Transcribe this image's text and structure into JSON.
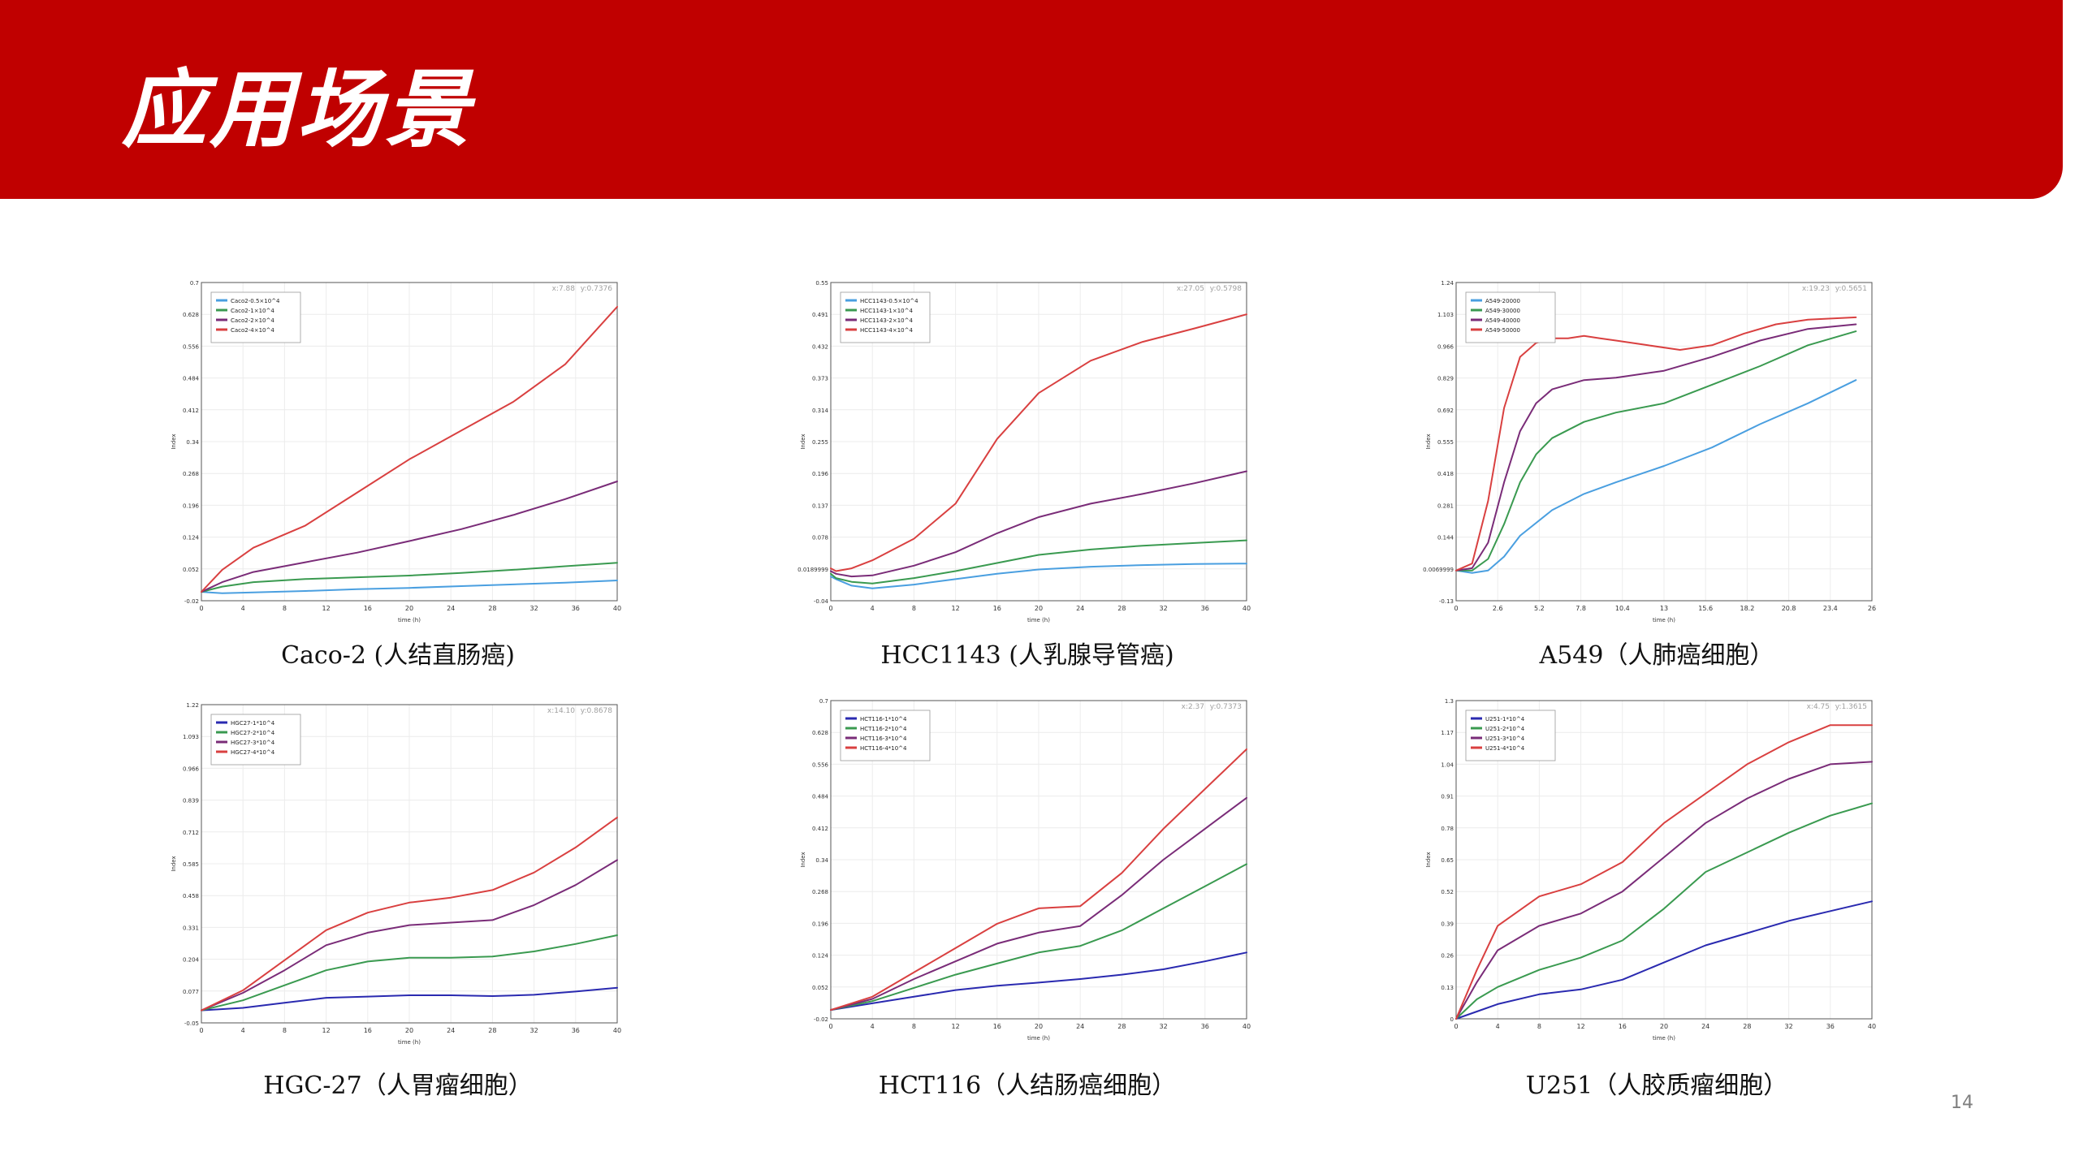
{
  "header": {
    "title": "应用场景"
  },
  "page_number": "14",
  "colors": {
    "banner": "#c00000",
    "blue": "#4a9fe0",
    "green": "#3a9a50",
    "purple": "#7a2c78",
    "red": "#d94040",
    "navy": "#2a2ab0"
  },
  "chart_data": [
    {
      "type": "line",
      "caption": "Caco-2 (人结直肠癌)",
      "xlabel": "time (h)",
      "ylabel": "Index",
      "readout_x": "x:7.88",
      "readout_y": "y:0.7376",
      "xlim": [
        0,
        40
      ],
      "ylim": [
        -0.02,
        0.7
      ],
      "xticks": [
        "0",
        "4",
        "8",
        "12",
        "16",
        "20",
        "24",
        "28",
        "32",
        "36",
        "40"
      ],
      "yticks": [
        "-0.02",
        "0.052",
        "0.124",
        "0.196",
        "0.268",
        "0.34",
        "0.412",
        "0.484",
        "0.556",
        "0.628",
        "0.7"
      ],
      "ytick_values": [
        -0.02,
        0.052,
        0.124,
        0.196,
        0.268,
        0.34,
        0.412,
        0.484,
        0.556,
        0.628,
        0.7
      ],
      "legend_position": "top-left",
      "grid": true,
      "series": [
        {
          "name": "Caco2-0.5×10^4",
          "color": "#4a9fe0",
          "x": [
            0,
            2,
            5,
            10,
            15,
            20,
            25,
            30,
            35,
            40
          ],
          "y": [
            0.0,
            -0.003,
            -0.001,
            0.002,
            0.006,
            0.009,
            0.013,
            0.017,
            0.021,
            0.026
          ]
        },
        {
          "name": "Caco2-1×10^4",
          "color": "#3a9a50",
          "x": [
            0,
            2,
            5,
            10,
            15,
            20,
            25,
            30,
            35,
            40
          ],
          "y": [
            0.0,
            0.012,
            0.022,
            0.029,
            0.033,
            0.037,
            0.043,
            0.05,
            0.058,
            0.066
          ]
        },
        {
          "name": "Caco2-2×10^4",
          "color": "#7a2c78",
          "x": [
            0,
            2,
            5,
            10,
            15,
            20,
            25,
            30,
            35,
            40
          ],
          "y": [
            0.0,
            0.022,
            0.045,
            0.067,
            0.089,
            0.115,
            0.142,
            0.174,
            0.21,
            0.25
          ]
        },
        {
          "name": "Caco2-4×10^4",
          "color": "#d94040",
          "x": [
            0,
            2,
            5,
            10,
            15,
            20,
            25,
            30,
            35,
            40
          ],
          "y": [
            0.0,
            0.05,
            0.1,
            0.15,
            0.225,
            0.3,
            0.365,
            0.43,
            0.515,
            0.645
          ]
        }
      ]
    },
    {
      "type": "line",
      "caption": "HCC1143 (人乳腺导管癌)",
      "xlabel": "time (h)",
      "ylabel": "Index",
      "readout_x": "x:27.05",
      "readout_y": "y:0.5798",
      "xlim": [
        0,
        40
      ],
      "ylim": [
        -0.04,
        0.55
      ],
      "xticks": [
        "0",
        "4",
        "8",
        "12",
        "16",
        "20",
        "24",
        "28",
        "32",
        "36",
        "40"
      ],
      "yticks": [
        "-0.04",
        "0.0189999",
        "0.078",
        "0.137",
        "0.196",
        "0.255",
        "0.314",
        "0.373",
        "0.432",
        "0.491",
        "0.55"
      ],
      "ytick_values": [
        -0.04,
        0.0189999,
        0.078,
        0.137,
        0.196,
        0.255,
        0.314,
        0.373,
        0.432,
        0.491,
        0.55
      ],
      "legend_position": "top-left",
      "grid": true,
      "series": [
        {
          "name": "HCC1143-0.5×10^4",
          "color": "#4a9fe0",
          "x": [
            0,
            0.5,
            2,
            4,
            8,
            12,
            16,
            20,
            25,
            30,
            35,
            40
          ],
          "y": [
            0.005,
            0.0,
            -0.012,
            -0.017,
            -0.01,
            0.0,
            0.01,
            0.018,
            0.023,
            0.026,
            0.028,
            0.029
          ]
        },
        {
          "name": "HCC1143-1×10^4",
          "color": "#3a9a50",
          "x": [
            0,
            0.5,
            2,
            4,
            8,
            12,
            16,
            20,
            25,
            30,
            35,
            40
          ],
          "y": [
            0.01,
            0.002,
            -0.005,
            -0.008,
            0.002,
            0.015,
            0.03,
            0.045,
            0.055,
            0.062,
            0.067,
            0.072
          ]
        },
        {
          "name": "HCC1143-2×10^4",
          "color": "#7a2c78",
          "x": [
            0,
            0.5,
            2,
            4,
            8,
            12,
            16,
            20,
            25,
            30,
            35,
            40
          ],
          "y": [
            0.015,
            0.01,
            0.005,
            0.007,
            0.025,
            0.05,
            0.085,
            0.115,
            0.14,
            0.158,
            0.178,
            0.2
          ]
        },
        {
          "name": "HCC1143-4×10^4",
          "color": "#d94040",
          "x": [
            0,
            0.5,
            2,
            4,
            8,
            12,
            16,
            20,
            25,
            30,
            35,
            40
          ],
          "y": [
            0.02,
            0.015,
            0.02,
            0.035,
            0.075,
            0.14,
            0.26,
            0.345,
            0.405,
            0.44,
            0.465,
            0.491
          ]
        }
      ]
    },
    {
      "type": "line",
      "caption": "A549（人肺癌细胞）",
      "xlabel": "time (h)",
      "ylabel": "Index",
      "readout_x": "x:19.23",
      "readout_y": "y:0.5651",
      "xlim": [
        0,
        26
      ],
      "ylim": [
        -0.13,
        1.24
      ],
      "xticks": [
        "0",
        "2.6",
        "5.2",
        "7.8",
        "10.4",
        "13",
        "15.6",
        "18.2",
        "20.8",
        "23.4",
        "26"
      ],
      "yticks": [
        "-0.13",
        "0.0069999",
        "0.144",
        "0.281",
        "0.418",
        "0.555",
        "0.692",
        "0.829",
        "0.966",
        "1.103",
        "1.24"
      ],
      "ytick_values": [
        -0.13,
        0.0069999,
        0.144,
        0.281,
        0.418,
        0.555,
        0.692,
        0.829,
        0.966,
        1.103,
        1.24
      ],
      "legend_position": "top-left",
      "grid": true,
      "series": [
        {
          "name": "A549-20000",
          "color": "#4a9fe0",
          "x": [
            0,
            1,
            2,
            3,
            4,
            6,
            8,
            10,
            13,
            16,
            19,
            22,
            25
          ],
          "y": [
            0.0,
            -0.01,
            0.0,
            0.06,
            0.15,
            0.26,
            0.33,
            0.38,
            0.45,
            0.53,
            0.63,
            0.72,
            0.82
          ]
        },
        {
          "name": "A549-30000",
          "color": "#3a9a50",
          "x": [
            0,
            1,
            2,
            3,
            4,
            5,
            6,
            8,
            10,
            13,
            16,
            19,
            22,
            25
          ],
          "y": [
            0.0,
            0.0,
            0.05,
            0.2,
            0.38,
            0.5,
            0.57,
            0.64,
            0.68,
            0.72,
            0.8,
            0.88,
            0.97,
            1.03
          ]
        },
        {
          "name": "A549-40000",
          "color": "#7a2c78",
          "x": [
            0,
            1,
            2,
            3,
            4,
            5,
            6,
            8,
            10,
            13,
            16,
            19,
            22,
            25
          ],
          "y": [
            0.0,
            0.01,
            0.12,
            0.38,
            0.6,
            0.72,
            0.78,
            0.82,
            0.83,
            0.86,
            0.92,
            0.99,
            1.04,
            1.06
          ]
        },
        {
          "name": "A549-50000",
          "color": "#d94040",
          "x": [
            0,
            1,
            2,
            3,
            4,
            5,
            6,
            7,
            8,
            9,
            10,
            12,
            14,
            16,
            18,
            20,
            22,
            25
          ],
          "y": [
            0.0,
            0.03,
            0.3,
            0.7,
            0.92,
            0.98,
            1.0,
            1.0,
            1.01,
            1.0,
            0.99,
            0.97,
            0.95,
            0.97,
            1.02,
            1.06,
            1.08,
            1.09
          ]
        }
      ]
    },
    {
      "type": "line",
      "caption": "HGC-27（人胃瘤细胞）",
      "xlabel": "time (h)",
      "ylabel": "Index",
      "readout_x": "x:14.10",
      "readout_y": "y:0.8678",
      "xlim": [
        0,
        40
      ],
      "ylim": [
        -0.05,
        1.22
      ],
      "xticks": [
        "0",
        "4",
        "8",
        "12",
        "16",
        "20",
        "24",
        "28",
        "32",
        "36",
        "40"
      ],
      "yticks": [
        "-0.05",
        "0.077",
        "0.204",
        "0.331",
        "0.458",
        "0.585",
        "0.712",
        "0.839",
        "0.966",
        "1.093",
        "1.22"
      ],
      "ytick_values": [
        -0.05,
        0.077,
        0.204,
        0.331,
        0.458,
        0.585,
        0.712,
        0.839,
        0.966,
        1.093,
        1.22
      ],
      "legend_position": "top-left",
      "grid": true,
      "series": [
        {
          "name": "HGC27-1*10^4",
          "color": "#2a2ab0",
          "x": [
            0,
            4,
            8,
            12,
            16,
            20,
            24,
            28,
            32,
            36,
            40
          ],
          "y": [
            0.0,
            0.01,
            0.03,
            0.05,
            0.055,
            0.06,
            0.06,
            0.057,
            0.062,
            0.075,
            0.09
          ]
        },
        {
          "name": "HGC27-2*10^4",
          "color": "#3a9a50",
          "x": [
            0,
            4,
            8,
            12,
            16,
            20,
            24,
            28,
            32,
            36,
            40
          ],
          "y": [
            0.0,
            0.04,
            0.1,
            0.16,
            0.195,
            0.21,
            0.21,
            0.215,
            0.235,
            0.265,
            0.3
          ]
        },
        {
          "name": "HGC27-3*10^4",
          "color": "#7a2c78",
          "x": [
            0,
            4,
            8,
            12,
            16,
            20,
            24,
            28,
            32,
            36,
            40
          ],
          "y": [
            0.0,
            0.07,
            0.16,
            0.26,
            0.31,
            0.34,
            0.35,
            0.36,
            0.42,
            0.5,
            0.6
          ]
        },
        {
          "name": "HGC27-4*10^4",
          "color": "#d94040",
          "x": [
            0,
            4,
            8,
            12,
            16,
            20,
            24,
            28,
            32,
            36,
            40
          ],
          "y": [
            0.0,
            0.08,
            0.2,
            0.32,
            0.39,
            0.43,
            0.45,
            0.48,
            0.55,
            0.65,
            0.77
          ]
        }
      ]
    },
    {
      "type": "line",
      "caption": "HCT116（人结肠癌细胞）",
      "xlabel": "time (h)",
      "ylabel": "Index",
      "readout_x": "x:2.37",
      "readout_y": "y:0.7373",
      "xlim": [
        0,
        40
      ],
      "ylim": [
        -0.02,
        0.7
      ],
      "xticks": [
        "0",
        "4",
        "8",
        "12",
        "16",
        "20",
        "24",
        "28",
        "32",
        "36",
        "40"
      ],
      "yticks": [
        "-0.02",
        "0.052",
        "0.124",
        "0.196",
        "0.268",
        "0.34",
        "0.412",
        "0.484",
        "0.556",
        "0.628",
        "0.7"
      ],
      "ytick_values": [
        -0.02,
        0.052,
        0.124,
        0.196,
        0.268,
        0.34,
        0.412,
        0.484,
        0.556,
        0.628,
        0.7
      ],
      "legend_position": "top-left",
      "grid": true,
      "series": [
        {
          "name": "HCT116-1*10^4",
          "color": "#2a2ab0",
          "x": [
            0,
            4,
            8,
            12,
            16,
            20,
            24,
            28,
            32,
            36,
            40
          ],
          "y": [
            0.0,
            0.015,
            0.03,
            0.045,
            0.055,
            0.062,
            0.07,
            0.08,
            0.092,
            0.11,
            0.13
          ]
        },
        {
          "name": "HCT116-2*10^4",
          "color": "#3a9a50",
          "x": [
            0,
            4,
            8,
            12,
            16,
            20,
            24,
            28,
            32,
            36,
            40
          ],
          "y": [
            0.0,
            0.02,
            0.05,
            0.08,
            0.105,
            0.13,
            0.145,
            0.18,
            0.23,
            0.28,
            0.33
          ]
        },
        {
          "name": "HCT116-3*10^4",
          "color": "#7a2c78",
          "x": [
            0,
            4,
            8,
            12,
            16,
            20,
            24,
            28,
            32,
            36,
            40
          ],
          "y": [
            0.0,
            0.025,
            0.07,
            0.11,
            0.15,
            0.175,
            0.19,
            0.26,
            0.34,
            0.41,
            0.48
          ]
        },
        {
          "name": "HCT116-4*10^4",
          "color": "#d94040",
          "x": [
            0,
            4,
            8,
            12,
            16,
            20,
            24,
            28,
            32,
            36,
            40
          ],
          "y": [
            0.0,
            0.03,
            0.085,
            0.14,
            0.195,
            0.23,
            0.235,
            0.31,
            0.41,
            0.5,
            0.59
          ]
        }
      ]
    },
    {
      "type": "line",
      "caption": "U251（人胶质瘤细胞）",
      "xlabel": "time (h)",
      "ylabel": "Index",
      "readout_x": "x:4.75",
      "readout_y": "y:1.3615",
      "xlim": [
        0,
        40
      ],
      "ylim": [
        0,
        1.3
      ],
      "xticks": [
        "0",
        "4",
        "8",
        "12",
        "16",
        "20",
        "24",
        "28",
        "32",
        "36",
        "40"
      ],
      "yticks": [
        "0",
        "0.13",
        "0.26",
        "0.39",
        "0.52",
        "0.65",
        "0.78",
        "0.91",
        "1.04",
        "1.17",
        "1.3"
      ],
      "ytick_values": [
        0,
        0.13,
        0.26,
        0.39,
        0.52,
        0.65,
        0.78,
        0.91,
        1.04,
        1.17,
        1.3
      ],
      "legend_position": "top-left",
      "grid": true,
      "series": [
        {
          "name": "U251-1*10^4",
          "color": "#2a2ab0",
          "x": [
            0,
            2,
            4,
            8,
            12,
            16,
            20,
            24,
            28,
            32,
            36,
            40
          ],
          "y": [
            0.0,
            0.03,
            0.06,
            0.1,
            0.12,
            0.16,
            0.23,
            0.3,
            0.35,
            0.4,
            0.44,
            0.48
          ]
        },
        {
          "name": "U251-2*10^4",
          "color": "#3a9a50",
          "x": [
            0,
            2,
            4,
            8,
            12,
            16,
            20,
            24,
            28,
            32,
            36,
            40
          ],
          "y": [
            0.0,
            0.08,
            0.13,
            0.2,
            0.25,
            0.32,
            0.45,
            0.6,
            0.68,
            0.76,
            0.83,
            0.88
          ]
        },
        {
          "name": "U251-3*10^4",
          "color": "#7a2c78",
          "x": [
            0,
            2,
            4,
            8,
            12,
            16,
            20,
            24,
            28,
            32,
            36,
            40
          ],
          "y": [
            0.0,
            0.15,
            0.28,
            0.38,
            0.43,
            0.52,
            0.66,
            0.8,
            0.9,
            0.98,
            1.04,
            1.05
          ]
        },
        {
          "name": "U251-4*10^4",
          "color": "#d94040",
          "x": [
            0,
            2,
            4,
            8,
            12,
            16,
            20,
            24,
            28,
            32,
            36,
            40
          ],
          "y": [
            0.0,
            0.2,
            0.38,
            0.5,
            0.55,
            0.64,
            0.8,
            0.92,
            1.04,
            1.13,
            1.2,
            1.2
          ]
        }
      ]
    }
  ]
}
